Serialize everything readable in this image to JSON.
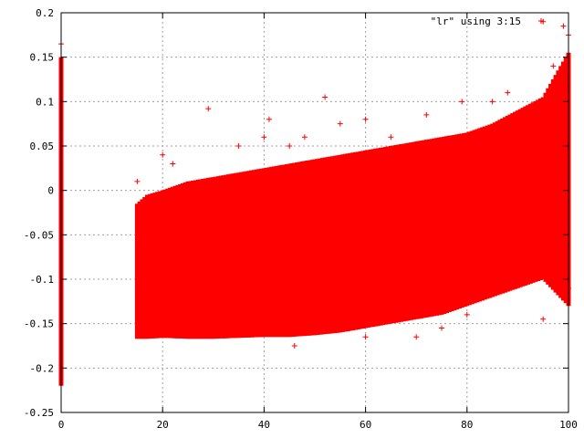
{
  "chart_data": {
    "type": "scatter",
    "title": "",
    "xlabel": "",
    "ylabel": "",
    "xlim": [
      0,
      100
    ],
    "ylim": [
      -0.25,
      0.2
    ],
    "grid": true,
    "legend_placement": "top-right",
    "series": [
      {
        "name": "\"lr\" using 3:15",
        "color": "#ff0000",
        "marker": "plus",
        "columns": [
          {
            "x": 0,
            "ymin": -0.22,
            "ymax": 0.15
          },
          {
            "x": 15,
            "ymin": -0.167,
            "ymax": -0.015
          },
          {
            "x": 17,
            "ymin": -0.167,
            "ymax": -0.005
          },
          {
            "x": 20,
            "ymin": -0.166,
            "ymax": 0.0
          },
          {
            "x": 25,
            "ymin": -0.167,
            "ymax": 0.01
          },
          {
            "x": 30,
            "ymin": -0.167,
            "ymax": 0.015
          },
          {
            "x": 35,
            "ymin": -0.166,
            "ymax": 0.02
          },
          {
            "x": 40,
            "ymin": -0.165,
            "ymax": 0.025
          },
          {
            "x": 45,
            "ymin": -0.165,
            "ymax": 0.03
          },
          {
            "x": 50,
            "ymin": -0.163,
            "ymax": 0.035
          },
          {
            "x": 55,
            "ymin": -0.16,
            "ymax": 0.04
          },
          {
            "x": 60,
            "ymin": -0.155,
            "ymax": 0.045
          },
          {
            "x": 65,
            "ymin": -0.15,
            "ymax": 0.05
          },
          {
            "x": 70,
            "ymin": -0.145,
            "ymax": 0.055
          },
          {
            "x": 75,
            "ymin": -0.14,
            "ymax": 0.06
          },
          {
            "x": 80,
            "ymin": -0.13,
            "ymax": 0.065
          },
          {
            "x": 85,
            "ymin": -0.12,
            "ymax": 0.075
          },
          {
            "x": 90,
            "ymin": -0.11,
            "ymax": 0.09
          },
          {
            "x": 95,
            "ymin": -0.1,
            "ymax": 0.105
          },
          {
            "x": 100,
            "ymin": -0.13,
            "ymax": 0.155
          }
        ],
        "outliers": [
          [
            0,
            0.165
          ],
          [
            15,
            0.01
          ],
          [
            20,
            0.04
          ],
          [
            22,
            0.03
          ],
          [
            29,
            0.092
          ],
          [
            35,
            0.05
          ],
          [
            40,
            0.06
          ],
          [
            41,
            0.08
          ],
          [
            45,
            0.05
          ],
          [
            48,
            0.06
          ],
          [
            52,
            0.105
          ],
          [
            55,
            0.075
          ],
          [
            60,
            0.08
          ],
          [
            65,
            0.06
          ],
          [
            72,
            0.085
          ],
          [
            79,
            0.1
          ],
          [
            85,
            0.1
          ],
          [
            88,
            0.11
          ],
          [
            95,
            0.19
          ],
          [
            97,
            0.14
          ],
          [
            99,
            0.185
          ],
          [
            100,
            0.175
          ],
          [
            46,
            -0.175
          ],
          [
            60,
            -0.165
          ],
          [
            70,
            -0.165
          ],
          [
            75,
            -0.155
          ],
          [
            80,
            -0.14
          ],
          [
            95,
            -0.145
          ],
          [
            100,
            -0.11
          ]
        ]
      }
    ],
    "xticks": [
      0,
      20,
      40,
      60,
      80,
      100
    ],
    "yticks": [
      -0.25,
      -0.2,
      -0.15,
      -0.1,
      -0.05,
      0,
      0.05,
      0.1,
      0.15,
      0.2
    ],
    "xtick_labels": [
      "0",
      "20",
      "40",
      "60",
      "80",
      "100"
    ],
    "ytick_labels": [
      "-0.25",
      "-0.2",
      "-0.15",
      "-0.1",
      "-0.05",
      "0",
      "0.05",
      "0.1",
      "0.15",
      "0.2"
    ]
  }
}
